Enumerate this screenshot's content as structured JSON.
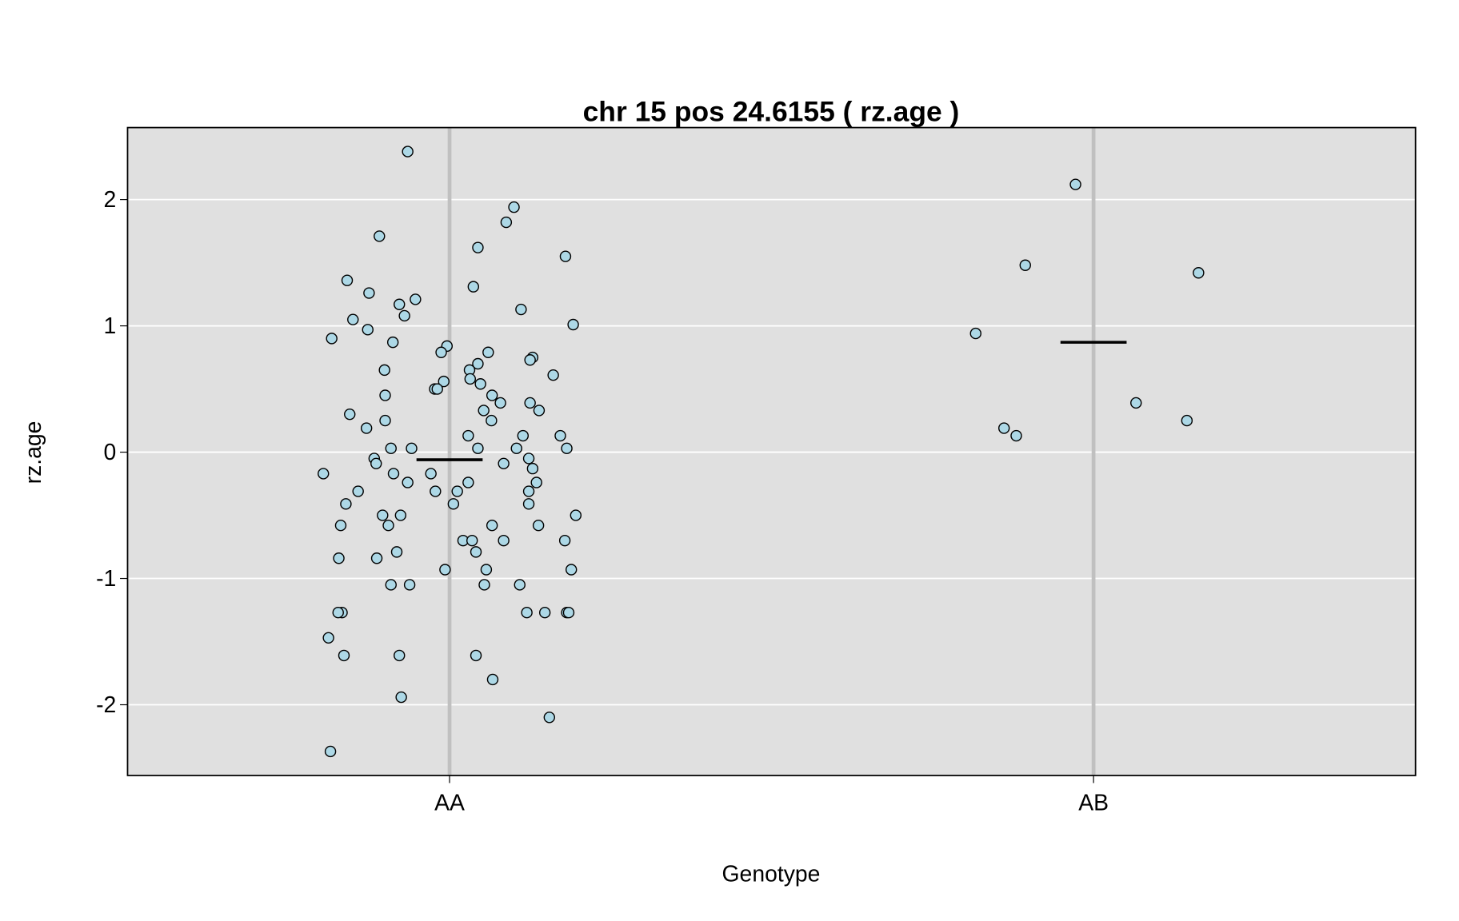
{
  "chart_data": {
    "type": "scatter",
    "title": "chr 15 pos 24.6155 ( rz.age )",
    "xlabel": "Genotype",
    "ylabel": "rz.age",
    "xlim": [
      0.5,
      2.5
    ],
    "xticks": [
      {
        "value": 1,
        "label": "AA"
      },
      {
        "value": 2,
        "label": "AB"
      }
    ],
    "ylim": [
      -2.56,
      2.57
    ],
    "yticks": [
      -2,
      -1,
      0,
      1,
      2
    ],
    "grid": true,
    "group_means": [
      -0.06,
      0.87
    ],
    "series": [
      {
        "color": "#add8e6",
        "x": [
          0.935,
          0.891,
          0.841,
          0.875,
          0.922,
          0.947,
          0.93,
          0.85,
          0.873,
          0.817,
          0.912,
          0.899,
          0.9,
          0.845,
          0.9,
          0.871,
          0.909,
          0.941,
          0.883,
          0.886,
          0.804,
          0.913,
          0.935,
          0.858,
          0.839,
          0.896,
          0.924,
          0.905,
          0.831,
          0.918,
          0.828,
          0.887,
          0.909,
          0.938,
          0.833,
          0.827,
          0.812,
          0.836,
          0.922,
          0.925,
          0.815,
          1.1,
          1.088,
          1.044,
          1.18,
          1.037,
          1.111,
          1.192,
          0.996,
          0.987,
          1.06,
          1.129,
          1.125,
          1.044,
          1.031,
          1.161,
          1.032,
          0.991,
          1.048,
          0.977,
          0.981,
          1.066,
          1.079,
          1.125,
          1.053,
          1.139,
          1.065,
          1.029,
          1.114,
          1.172,
          1.044,
          1.104,
          1.182,
          1.123,
          1.084,
          1.129,
          0.971,
          1.135,
          1.029,
          0.978,
          1.012,
          1.123,
          1.006,
          1.123,
          1.196,
          1.066,
          1.138,
          1.021,
          1.035,
          1.084,
          1.179,
          1.041,
          0.993,
          1.057,
          1.189,
          1.054,
          1.109,
          1.12,
          1.148,
          1.182,
          1.185,
          1.041,
          1.067,
          1.155,
          1.972,
          1.894,
          2.163,
          1.817,
          2.066,
          2.145,
          1.861,
          1.88
        ],
        "values": [
          2.38,
          1.71,
          1.36,
          1.26,
          1.17,
          1.21,
          1.08,
          1.05,
          0.97,
          0.9,
          0.87,
          0.65,
          0.45,
          0.3,
          0.25,
          0.19,
          0.03,
          0.03,
          -0.05,
          -0.09,
          -0.17,
          -0.17,
          -0.24,
          -0.31,
          -0.41,
          -0.5,
          -0.5,
          -0.58,
          -0.58,
          -0.79,
          -0.84,
          -0.84,
          -1.05,
          -1.05,
          -1.27,
          -1.27,
          -1.47,
          -1.61,
          -1.61,
          -1.94,
          -2.37,
          1.94,
          1.82,
          1.62,
          1.55,
          1.31,
          1.13,
          1.01,
          0.84,
          0.79,
          0.79,
          0.75,
          0.73,
          0.7,
          0.65,
          0.61,
          0.58,
          0.56,
          0.54,
          0.5,
          0.5,
          0.45,
          0.39,
          0.39,
          0.33,
          0.33,
          0.25,
          0.13,
          0.13,
          0.13,
          0.03,
          0.03,
          0.03,
          -0.05,
          -0.09,
          -0.13,
          -0.17,
          -0.24,
          -0.24,
          -0.31,
          -0.31,
          -0.31,
          -0.41,
          -0.41,
          -0.5,
          -0.58,
          -0.58,
          -0.7,
          -0.7,
          -0.7,
          -0.7,
          -0.79,
          -0.93,
          -0.93,
          -0.93,
          -1.05,
          -1.05,
          -1.27,
          -1.27,
          -1.27,
          -1.27,
          -1.61,
          -1.8,
          -2.1,
          2.12,
          1.48,
          1.42,
          0.94,
          0.39,
          0.25,
          0.19,
          0.13
        ]
      }
    ]
  }
}
